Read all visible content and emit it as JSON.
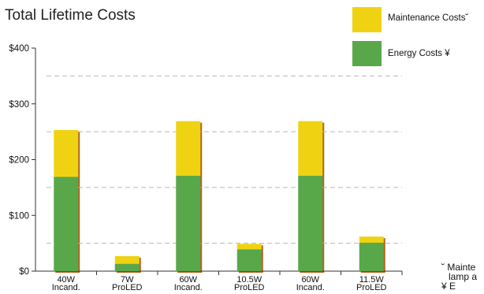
{
  "chart_data": {
    "type": "bar",
    "stacked": true,
    "title": "Total Lifetime Costs",
    "categories": [
      [
        "40W",
        "Incand."
      ],
      [
        "7W",
        "ProLED"
      ],
      [
        "60W",
        "Incand."
      ],
      [
        "10.5W",
        "ProLED"
      ],
      [
        "60W",
        "Incand."
      ],
      [
        "11.5W",
        "ProLED"
      ]
    ],
    "series": [
      {
        "name": "Energy Costs ¥",
        "color": "#58a84a",
        "values": [
          169,
          13,
          171,
          39,
          171,
          51
        ]
      },
      {
        "name": "Maintenance Costs˘",
        "color": "#efd313",
        "values": [
          84,
          14,
          98,
          10,
          98,
          11
        ]
      }
    ],
    "yticks": [
      {
        "value": 0,
        "label": "$0"
      },
      {
        "value": 100,
        "label": "$100"
      },
      {
        "value": 200,
        "label": "$200"
      },
      {
        "value": 300,
        "label": "$300"
      },
      {
        "value": 400,
        "label": "$400"
      }
    ],
    "ylim": [
      0,
      400
    ],
    "grid_dashed_at": [
      50,
      150,
      250,
      350
    ],
    "legend_position": "top-right"
  },
  "footnotes": [
    "˘ Mainte",
    "lamp a",
    "¥ E"
  ],
  "colors": {
    "bar_shadow": "#b0651f",
    "grid": "#b8b8b8",
    "axis": "#333333"
  }
}
